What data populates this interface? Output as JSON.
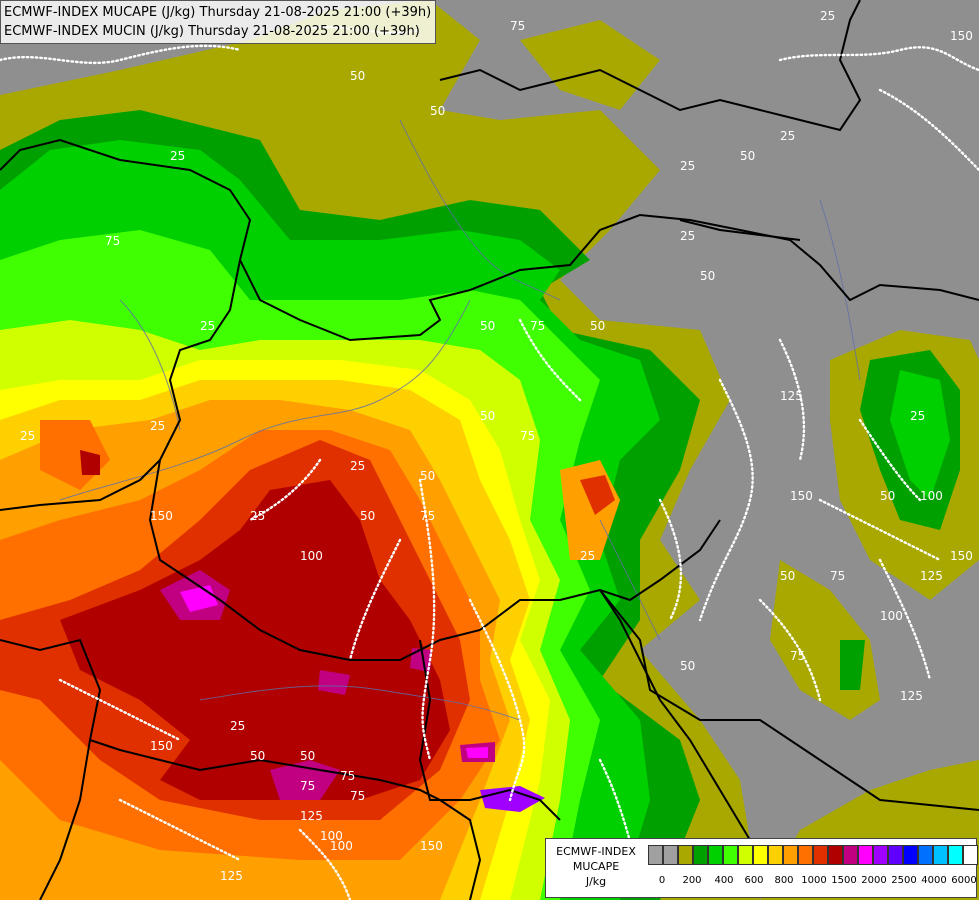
{
  "map_title": {
    "line1": "ECMWF-INDEX MUCAPE (J/kg) Thursday 21-08-2025 21:00 (+39h)",
    "line2": "ECMWF-INDEX MUCIN (J/kg) Thursday 21-08-2025 21:00 (+39h)"
  },
  "legend": {
    "title1": "ECMWF-INDEX",
    "title2": "MUCAPE",
    "unit": "J/kg",
    "colors": [
      "#a0a0a0",
      "#a0a0a0",
      "#a8a800",
      "#00a000",
      "#00d000",
      "#40ff00",
      "#d0ff00",
      "#ffff00",
      "#ffd000",
      "#ffa000",
      "#ff7000",
      "#e03000",
      "#b00000",
      "#c00080",
      "#ff00ff",
      "#a000ff",
      "#6000ff",
      "#0000ff",
      "#0070ff",
      "#00c0ff",
      "#00ffff",
      "#ffffff"
    ],
    "tick_labels": [
      "0",
      "200",
      "400",
      "600",
      "800",
      "1000",
      "1500",
      "2000",
      "2500",
      "4000",
      "6000"
    ]
  },
  "cin_contour_labels": [
    "75",
    "25",
    "50",
    "50",
    "25",
    "50",
    "25",
    "25",
    "75",
    "50",
    "75",
    "50",
    "25",
    "25",
    "50",
    "75",
    "25",
    "50",
    "100",
    "125",
    "75",
    "25",
    "150",
    "150",
    "50",
    "100",
    "50",
    "75",
    "125",
    "150",
    "150",
    "25",
    "50",
    "75",
    "25",
    "75",
    "100",
    "50",
    "25",
    "125",
    "150",
    "50",
    "75",
    "100",
    "125",
    "25",
    "50",
    "75",
    "100",
    "125",
    "150",
    "25",
    "50"
  ],
  "colors": {
    "background": "#8f8f8f",
    "border_lines": "#000000",
    "rivers": "#5f6fa8",
    "cin_contours": "#ffffff"
  }
}
